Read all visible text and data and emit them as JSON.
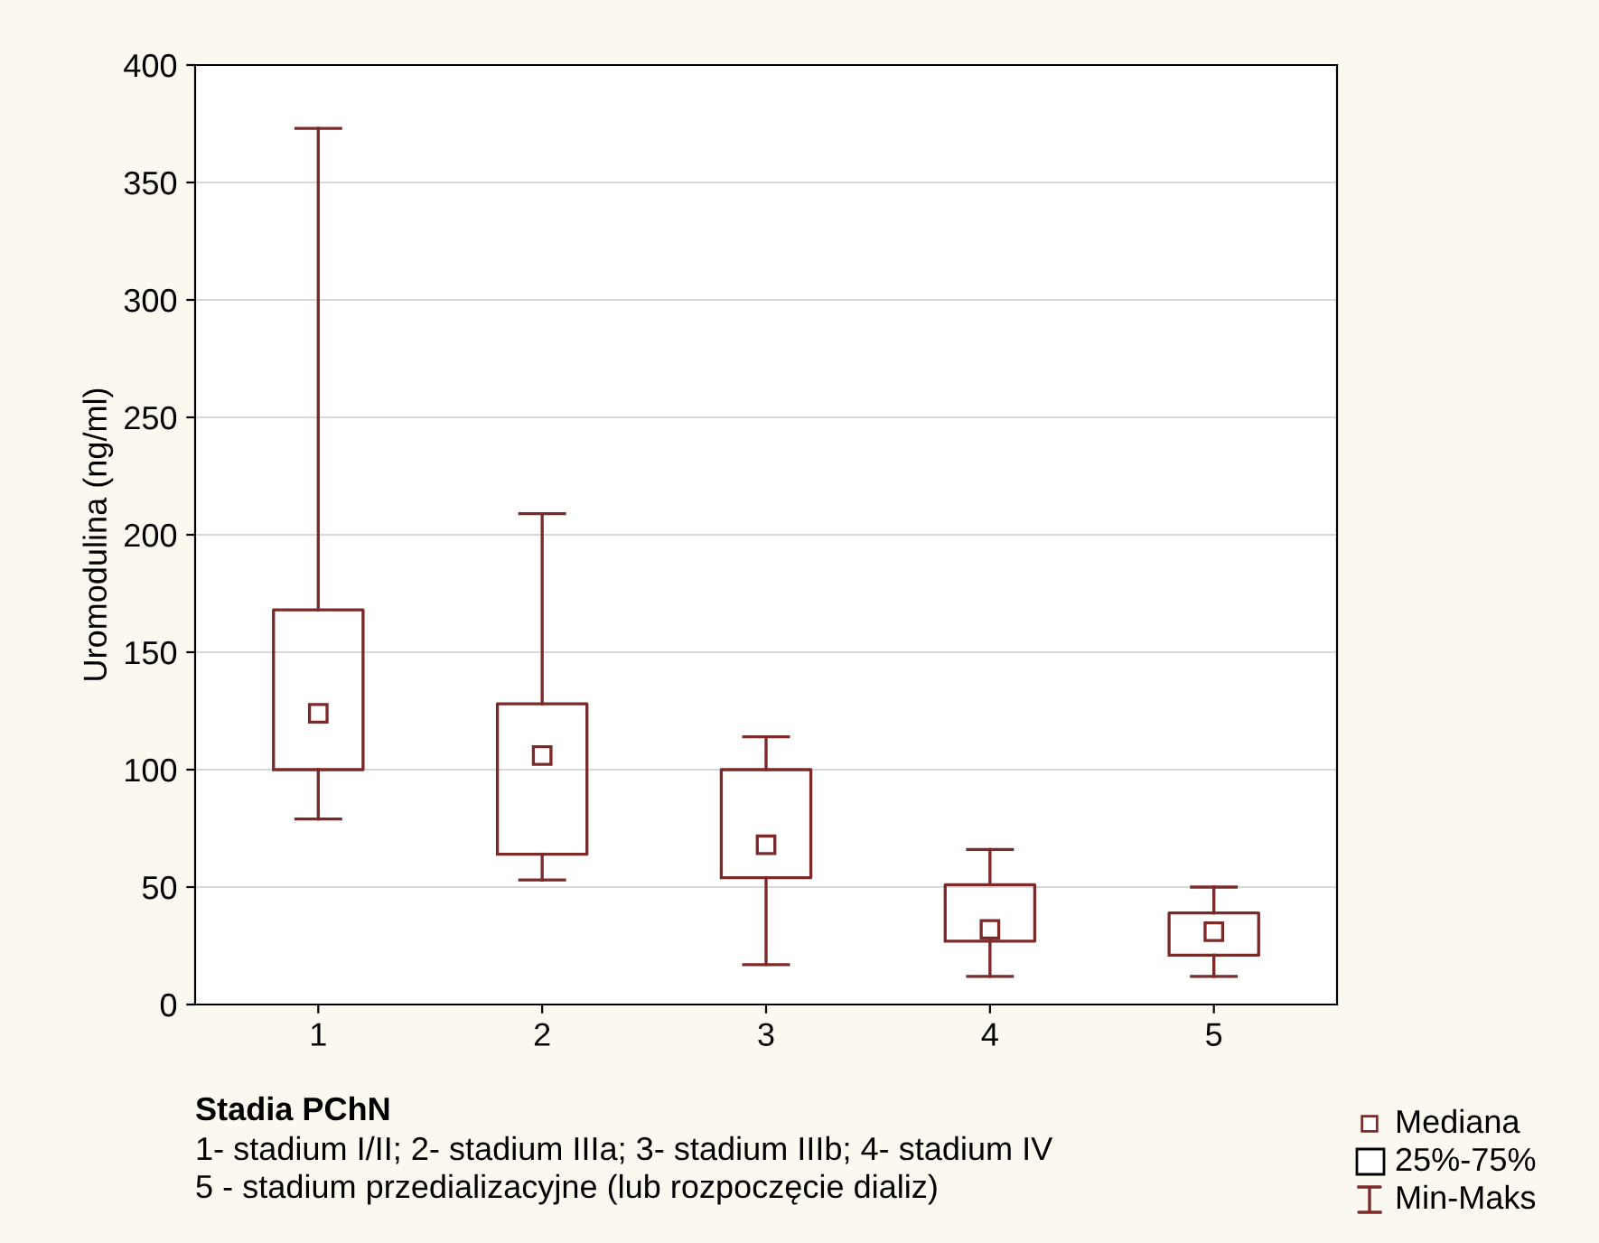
{
  "chart_data": {
    "type": "box",
    "xlabel": "Stadia PChN",
    "ylabel": "Uromodulina (ng/ml)",
    "categories": [
      "1",
      "2",
      "3",
      "4",
      "5"
    ],
    "color": "#7b2a2a",
    "boxes": [
      {
        "low": 79,
        "q1": 100,
        "median": 124,
        "q3": 168,
        "high": 373
      },
      {
        "low": 53,
        "q1": 64,
        "median": 106,
        "q3": 128,
        "high": 209
      },
      {
        "low": 17,
        "q1": 54,
        "median": 68,
        "q3": 100,
        "high": 114
      },
      {
        "low": 12,
        "q1": 27,
        "median": 32,
        "q3": 51,
        "high": 66
      },
      {
        "low": 12,
        "q1": 21,
        "median": 31,
        "q3": 39,
        "high": 50
      }
    ],
    "ylim": [
      0,
      400
    ],
    "yticks": [
      0,
      50,
      100,
      150,
      200,
      250,
      300,
      350,
      400
    ],
    "grid": "y",
    "annotations": [
      "1- stadium I/II; 2- stadium IIIa; 3- stadium IIIb; 4- stadium IV",
      "5 - stadium przedializacyjne (lub rozpoczęcie dializ)",
      "Mediana",
      "25%-75%",
      "Min-Maks"
    ]
  }
}
